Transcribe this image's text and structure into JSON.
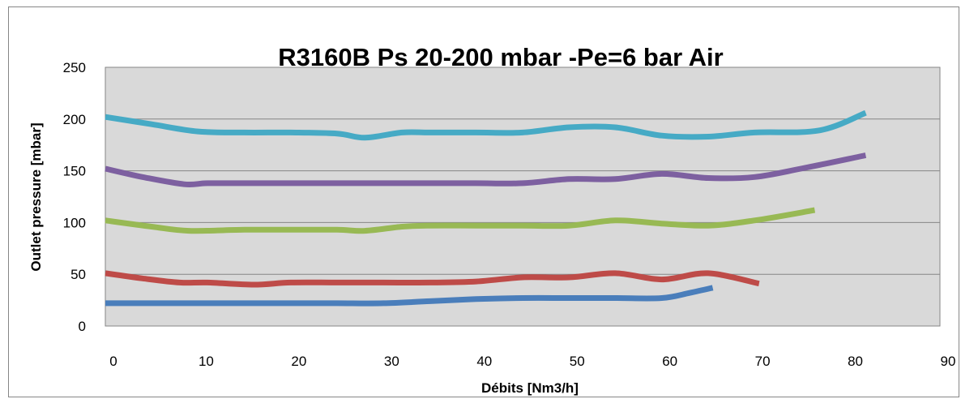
{
  "chart_data": {
    "type": "line",
    "title": "R3160B Ps 20-200 mbar -Pe=6 bar Air",
    "xlabel": "Débits [Nm3/h]",
    "ylabel": "Outlet pressure [mbar]",
    "xlim": [
      0,
      90
    ],
    "ylim": [
      0,
      250
    ],
    "xticks": [
      "0",
      "10",
      "20",
      "30",
      "40",
      "50",
      "60",
      "70",
      "80",
      "90"
    ],
    "yticks": [
      "0",
      "50",
      "100",
      "150",
      "200",
      "250"
    ],
    "grid": "horizontal",
    "legend": "none",
    "plot_bg": "#d9d9d9",
    "series": [
      {
        "color": "#4a7ebb",
        "x": [
          0,
          5,
          10,
          15,
          20,
          25,
          30,
          35,
          40,
          45,
          50,
          55,
          60,
          63,
          65.5
        ],
        "y": [
          22,
          22,
          22,
          22,
          22,
          22,
          22,
          24,
          26,
          27,
          27,
          27,
          27,
          32,
          37
        ]
      },
      {
        "color": "#be4b48",
        "x": [
          0,
          4,
          8,
          11,
          16,
          20,
          25,
          30,
          35,
          40,
          45,
          50,
          55,
          60,
          65,
          70.5
        ],
        "y": [
          51,
          46,
          42,
          42,
          40,
          42,
          42,
          42,
          42,
          43,
          47,
          47,
          51,
          45,
          51,
          41
        ]
      },
      {
        "color": "#98b954",
        "x": [
          0,
          5,
          9,
          15,
          20,
          25,
          28,
          32,
          35,
          40,
          45,
          50,
          55,
          60,
          65,
          70,
          76.5
        ],
        "y": [
          102,
          96,
          92,
          93,
          93,
          93,
          92,
          96,
          97,
          97,
          97,
          97,
          102,
          99,
          97,
          102,
          112
        ]
      },
      {
        "color": "#7d60a0",
        "x": [
          0,
          4,
          8.5,
          11,
          15,
          20,
          25,
          30,
          35,
          40,
          45,
          50,
          55,
          60,
          65,
          70,
          75,
          82
        ],
        "y": [
          152,
          144,
          137,
          138,
          138,
          138,
          138,
          138,
          138,
          138,
          138,
          142,
          142,
          147,
          143,
          144,
          152,
          165
        ]
      },
      {
        "color": "#46aac5",
        "x": [
          0,
          5,
          10,
          15,
          20,
          25,
          28,
          32,
          35,
          40,
          45,
          50,
          55,
          60,
          65,
          70,
          77,
          82
        ],
        "y": [
          202,
          195,
          188,
          187,
          187,
          186,
          182,
          187,
          187,
          187,
          187,
          192,
          192,
          184,
          183,
          187,
          189,
          206
        ]
      }
    ]
  }
}
